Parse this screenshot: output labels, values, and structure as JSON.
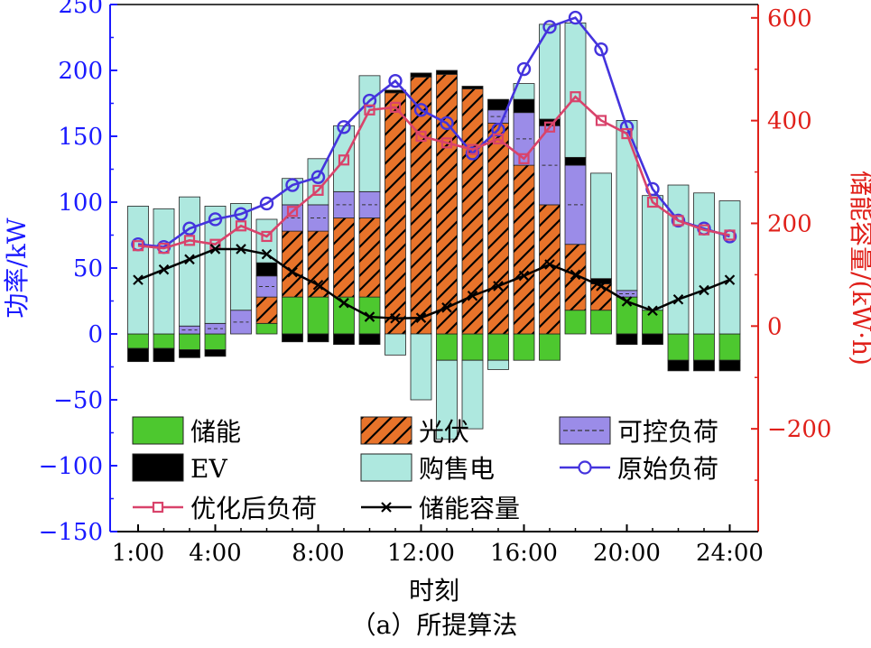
{
  "chart_data": {
    "type": "bar",
    "caption": "（a）所提算法",
    "xlabel": "时刻",
    "ylabel_left": "功率/kW",
    "ylabel_right": "储能容量/(kW·h)",
    "ylim_left": [
      -150,
      250
    ],
    "ylim_right": [
      -400,
      626
    ],
    "yticks_left": [
      "-150",
      "-100",
      "-50",
      "0",
      "50",
      "100",
      "150",
      "200",
      "250"
    ],
    "yticks_right": [
      "-200",
      "0",
      "200",
      "400",
      "600"
    ],
    "x": [
      1,
      2,
      3,
      4,
      5,
      6,
      7,
      8,
      9,
      10,
      11,
      12,
      13,
      14,
      15,
      16,
      17,
      18,
      19,
      20,
      21,
      22,
      23,
      24
    ],
    "xticks": [
      "1:00",
      "4:00",
      "8:00",
      "12:00",
      "16:00",
      "20:00",
      "24:00"
    ],
    "colors": {
      "storage": "#4dc82f",
      "pv": "#e8732a",
      "controllable": "#9b8ce8",
      "ev": "#000000",
      "grid": "#aee8df",
      "original_load": "#4433dd",
      "optimized_load": "#d9436b",
      "storage_capacity": "#000000",
      "left_axis": "#1a1aff",
      "right_axis": "#e0201a"
    },
    "stacked_series": [
      {
        "name": "储能",
        "key": "storage",
        "values": [
          -11,
          -11,
          -12,
          -12,
          0,
          8,
          28,
          28,
          28,
          28,
          0,
          0,
          -20,
          -20,
          -20,
          -20,
          -20,
          18,
          18,
          28,
          18,
          -20,
          -20,
          -20
        ]
      },
      {
        "name": "光伏",
        "key": "pv",
        "values": [
          0,
          0,
          0,
          0,
          0,
          20,
          50,
          50,
          60,
          60,
          183,
          195,
          197,
          186,
          160,
          128,
          98,
          50,
          20,
          0,
          0,
          0,
          0,
          0
        ]
      },
      {
        "name": "可控负荷",
        "key": "controllable",
        "values": [
          0,
          0,
          6,
          8,
          18,
          16,
          20,
          20,
          20,
          20,
          0,
          0,
          0,
          0,
          10,
          40,
          60,
          60,
          0,
          5,
          0,
          0,
          0,
          0
        ]
      },
      {
        "name": "EV",
        "key": "ev",
        "values": [
          -10,
          -10,
          -6,
          -5,
          0,
          10,
          -6,
          -6,
          -8,
          -8,
          2,
          3,
          3,
          2,
          8,
          10,
          5,
          6,
          4,
          -8,
          -8,
          -8,
          -8,
          -8
        ]
      },
      {
        "name": "购售电",
        "key": "grid",
        "values": [
          97,
          95,
          98,
          89,
          81,
          33,
          20,
          35,
          50,
          88,
          -16,
          -50,
          -60,
          -52,
          -7,
          12,
          72,
          102,
          80,
          129,
          87,
          113,
          107,
          101
        ]
      }
    ],
    "line_series": [
      {
        "name": "原始负荷",
        "key": "original_load",
        "axis": "left",
        "values": [
          68,
          66,
          80,
          87,
          91,
          99,
          113,
          119,
          157,
          177,
          192,
          170,
          160,
          137,
          155,
          201,
          233,
          240,
          216,
          157,
          110,
          86,
          80,
          74
        ]
      },
      {
        "name": "优化后负荷",
        "key": "optimized_load",
        "axis": "left",
        "values": [
          67,
          65,
          71,
          68,
          82,
          74,
          93,
          109,
          132,
          170,
          172,
          150,
          145,
          140,
          148,
          133,
          157,
          180,
          162,
          152,
          100,
          86,
          79,
          75
        ]
      },
      {
        "name": "储能容量",
        "key": "storage_capacity",
        "axis": "right",
        "values": [
          90,
          110,
          130,
          150,
          150,
          140,
          105,
          80,
          45,
          18,
          15,
          16,
          36,
          59,
          78,
          98,
          120,
          100,
          78,
          48,
          30,
          52,
          70,
          90
        ]
      }
    ],
    "legend": [
      {
        "label": "储能",
        "key": "storage",
        "kind": "bar"
      },
      {
        "label": "光伏",
        "key": "pv",
        "kind": "bar-hatch"
      },
      {
        "label": "可控负荷",
        "key": "controllable",
        "kind": "bar-dashed"
      },
      {
        "label": "EV",
        "key": "ev",
        "kind": "bar"
      },
      {
        "label": "购售电",
        "key": "grid",
        "kind": "bar"
      },
      {
        "label": "原始负荷",
        "key": "original_load",
        "kind": "line-circle"
      },
      {
        "label": "优化后负荷",
        "key": "optimized_load",
        "kind": "line-square"
      },
      {
        "label": "储能容量",
        "key": "storage_capacity",
        "kind": "line-x"
      }
    ]
  }
}
